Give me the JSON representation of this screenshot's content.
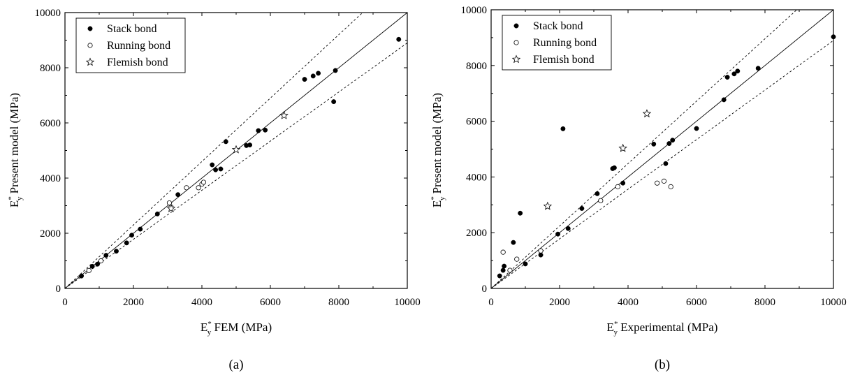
{
  "chart_data": [
    {
      "type": "scatter",
      "panel_label": "(a)",
      "xlabel": {
        "main": "E",
        "sup": "*",
        "sub": "y",
        "rest": " FEM (MPa)"
      },
      "ylabel": {
        "main": "E",
        "sup": "*",
        "sub": "y",
        "rest": " Present model (MPa)"
      },
      "xlim": [
        0,
        10000
      ],
      "ylim": [
        0,
        10000
      ],
      "xticks": [
        "0",
        "2000",
        "4000",
        "6000",
        "8000",
        "10000"
      ],
      "yticks": [
        "0",
        "2000",
        "4000",
        "6000",
        "8000",
        "10000"
      ],
      "legend_position": "top-left",
      "reference_lines": {
        "solid_slope": 1.0,
        "dashed_slopes": [
          1.15,
          0.89
        ]
      },
      "series": [
        {
          "name": "Stack bond",
          "marker": "filled-circle",
          "points": [
            [
              480,
              450
            ],
            [
              800,
              800
            ],
            [
              950,
              880
            ],
            [
              1200,
              1200
            ],
            [
              1500,
              1350
            ],
            [
              1800,
              1650
            ],
            [
              1950,
              1930
            ],
            [
              2200,
              2150
            ],
            [
              2700,
              2700
            ],
            [
              3300,
              3400
            ],
            [
              4300,
              4480
            ],
            [
              4400,
              4300
            ],
            [
              4550,
              4330
            ],
            [
              4700,
              5320
            ],
            [
              5300,
              5180
            ],
            [
              5400,
              5200
            ],
            [
              5650,
              5720
            ],
            [
              5850,
              5740
            ],
            [
              7000,
              7580
            ],
            [
              7250,
              7700
            ],
            [
              7400,
              7800
            ],
            [
              7900,
              7900
            ],
            [
              7850,
              6770
            ],
            [
              9750,
              9030
            ]
          ]
        },
        {
          "name": "Running bond",
          "marker": "open-circle",
          "points": [
            [
              700,
              650
            ],
            [
              1050,
              1000
            ],
            [
              3050,
              3100
            ],
            [
              3100,
              2950
            ],
            [
              3550,
              3650
            ],
            [
              3900,
              3650
            ],
            [
              4000,
              3780
            ],
            [
              4050,
              3850
            ]
          ]
        },
        {
          "name": "Flemish bond",
          "marker": "star",
          "points": [
            [
              3100,
              2900
            ],
            [
              5000,
              5030
            ],
            [
              6400,
              6270
            ]
          ]
        }
      ]
    },
    {
      "type": "scatter",
      "panel_label": "(b)",
      "xlabel": {
        "main": "E",
        "sup": "*",
        "sub": "y",
        "rest": " Experimental (MPa)"
      },
      "ylabel": {
        "main": "E",
        "sup": "*",
        "sub": "y",
        "rest": " Present model (MPa)"
      },
      "xlim": [
        0,
        10000
      ],
      "ylim": [
        0,
        10000
      ],
      "xticks": [
        "0",
        "2000",
        "4000",
        "6000",
        "8000",
        "10000"
      ],
      "yticks": [
        "0",
        "2000",
        "4000",
        "6000",
        "8000",
        "10000"
      ],
      "legend_position": "top-left",
      "reference_lines": {
        "solid_slope": 1.0,
        "dashed_slopes": [
          1.12,
          0.89
        ]
      },
      "series": [
        {
          "name": "Stack bond",
          "marker": "filled-circle",
          "points": [
            [
              250,
              450
            ],
            [
              350,
              650
            ],
            [
              380,
              800
            ],
            [
              650,
              1650
            ],
            [
              850,
              2700
            ],
            [
              1000,
              880
            ],
            [
              1450,
              1200
            ],
            [
              1950,
              1950
            ],
            [
              2100,
              5730
            ],
            [
              2250,
              2150
            ],
            [
              2650,
              2870
            ],
            [
              3100,
              3400
            ],
            [
              3550,
              4300
            ],
            [
              3600,
              4330
            ],
            [
              3850,
              3780
            ],
            [
              4750,
              5180
            ],
            [
              5100,
              4480
            ],
            [
              5200,
              5200
            ],
            [
              5300,
              5320
            ],
            [
              6000,
              5740
            ],
            [
              6800,
              6770
            ],
            [
              6900,
              7580
            ],
            [
              7100,
              7700
            ],
            [
              7200,
              7800
            ],
            [
              7800,
              7900
            ],
            [
              10000,
              9030
            ]
          ]
        },
        {
          "name": "Running bond",
          "marker": "open-circle",
          "points": [
            [
              350,
              1300
            ],
            [
              550,
              650
            ],
            [
              750,
              1050
            ],
            [
              1450,
              1350
            ],
            [
              3200,
              3150
            ],
            [
              3700,
              3650
            ],
            [
              4850,
              3780
            ],
            [
              5050,
              3850
            ],
            [
              5250,
              3650
            ]
          ]
        },
        {
          "name": "Flemish bond",
          "marker": "star",
          "points": [
            [
              1650,
              2950
            ],
            [
              3850,
              5030
            ],
            [
              4550,
              6270
            ]
          ]
        }
      ]
    }
  ]
}
